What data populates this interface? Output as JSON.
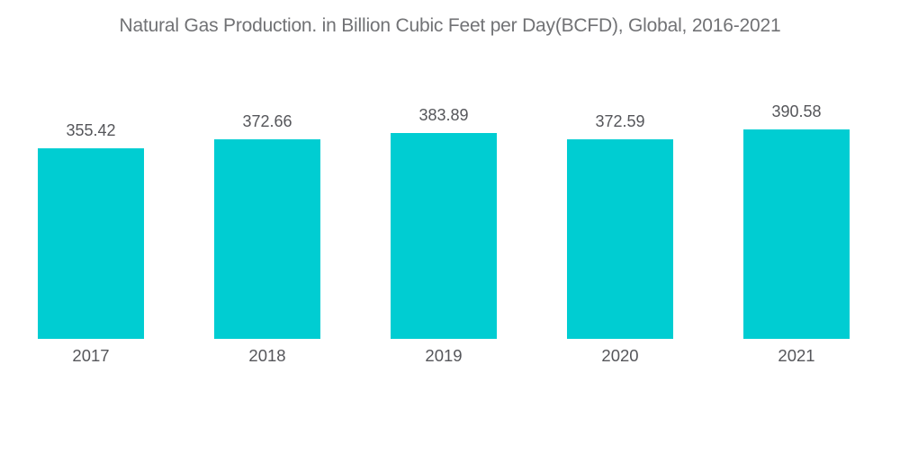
{
  "page": {
    "background_color": "#ffffff"
  },
  "chart_data": {
    "type": "bar",
    "title": "Natural Gas Production. in Billion Cubic Feet per Day(BCFD), Global, 2016-2021",
    "categories": [
      "2017",
      "2018",
      "2019",
      "2020",
      "2021"
    ],
    "values": [
      355.42,
      372.66,
      383.89,
      372.59,
      390.58
    ],
    "value_labels": [
      "355.42",
      "372.66",
      "383.89",
      "372.59",
      "390.58"
    ],
    "series": [
      {
        "name": "Natural Gas Production (BCFD)",
        "values": [
          355.42,
          372.66,
          383.89,
          372.59,
          390.58
        ]
      }
    ],
    "xlabel": "",
    "ylabel": "",
    "ylim": [
      0,
      390.58
    ],
    "grid": false,
    "axes_visible": false,
    "legend_position": "none",
    "bar_color": "#00cdd2",
    "title_color": "#717275",
    "label_color": "#55565a"
  }
}
